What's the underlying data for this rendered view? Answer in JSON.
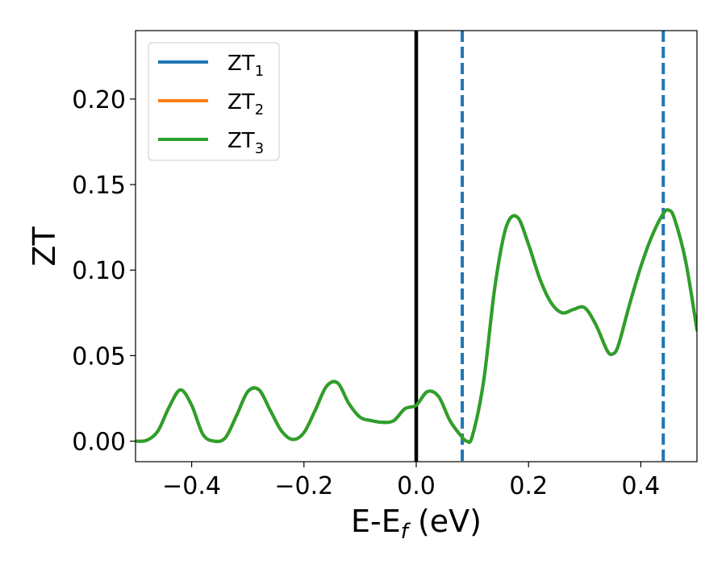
{
  "chart_data": {
    "type": "line",
    "xlabel": "E-E",
    "xlabel_sub": "f",
    "xlabel_unit": " (eV)",
    "ylabel": "ZT",
    "xlim": [
      -0.5,
      0.5
    ],
    "ylim": [
      -0.012,
      0.24
    ],
    "x_ticks": [
      -0.4,
      -0.2,
      0.0,
      0.2,
      0.4
    ],
    "x_tick_labels": [
      "−0.4",
      "−0.2",
      "0.0",
      "0.2",
      "0.4"
    ],
    "y_ticks": [
      0.0,
      0.05,
      0.1,
      0.15,
      0.2
    ],
    "y_tick_labels": [
      "0.00",
      "0.05",
      "0.10",
      "0.15",
      "0.20"
    ],
    "legend_position": "upper-left",
    "series": [
      {
        "name": "ZT",
        "sub": "1",
        "color": "#1f77b4"
      },
      {
        "name": "ZT",
        "sub": "2",
        "color": "#ff7f0e"
      },
      {
        "name": "ZT",
        "sub": "3",
        "color": "#2ca02c"
      }
    ],
    "x": [
      -0.5,
      -0.48,
      -0.46,
      -0.44,
      -0.42,
      -0.4,
      -0.38,
      -0.36,
      -0.34,
      -0.32,
      -0.3,
      -0.28,
      -0.26,
      -0.24,
      -0.22,
      -0.2,
      -0.18,
      -0.16,
      -0.14,
      -0.12,
      -0.1,
      -0.08,
      -0.06,
      -0.04,
      -0.02,
      0.0,
      0.02,
      0.04,
      0.06,
      0.08,
      0.09,
      0.1,
      0.12,
      0.14,
      0.16,
      0.18,
      0.2,
      0.22,
      0.24,
      0.26,
      0.28,
      0.3,
      0.32,
      0.34,
      0.35,
      0.36,
      0.38,
      0.4,
      0.42,
      0.44,
      0.45,
      0.46,
      0.48,
      0.5
    ],
    "y": [
      0.0,
      0.0005,
      0.006,
      0.02,
      0.03,
      0.021,
      0.004,
      0.0,
      0.002,
      0.015,
      0.029,
      0.03,
      0.018,
      0.006,
      0.001,
      0.005,
      0.018,
      0.032,
      0.034,
      0.022,
      0.014,
      0.012,
      0.011,
      0.012,
      0.019,
      0.021,
      0.029,
      0.026,
      0.012,
      0.003,
      0.0,
      0.003,
      0.035,
      0.09,
      0.125,
      0.131,
      0.115,
      0.095,
      0.081,
      0.075,
      0.077,
      0.078,
      0.068,
      0.053,
      0.051,
      0.056,
      0.08,
      0.102,
      0.12,
      0.133,
      0.135,
      0.13,
      0.105,
      0.065
    ],
    "vlines": [
      {
        "x": 0.0,
        "color": "#000000",
        "style": "solid"
      },
      {
        "x": 0.082,
        "color": "#1f77b4",
        "style": "dashed"
      },
      {
        "x": 0.44,
        "color": "#1f77b4",
        "style": "dashed"
      }
    ]
  }
}
